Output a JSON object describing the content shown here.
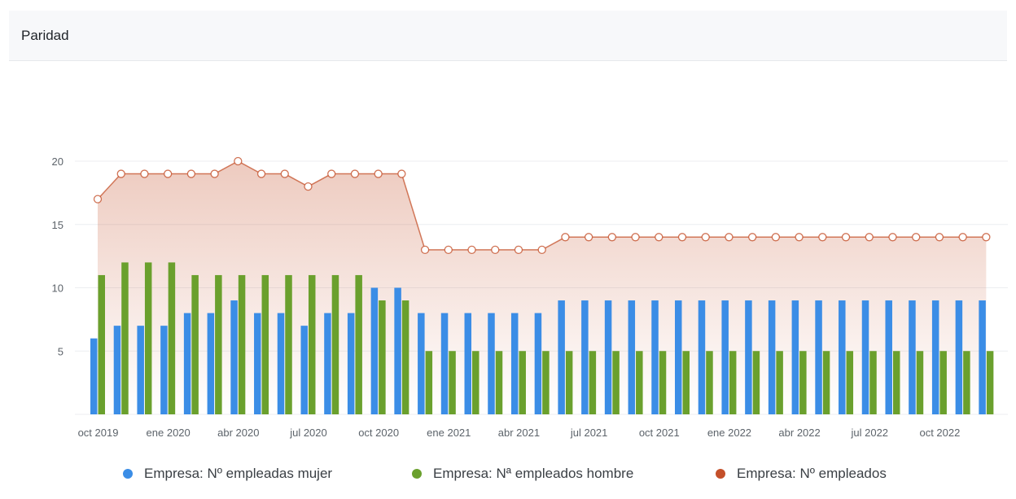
{
  "header": {
    "title": "Paridad"
  },
  "colors": {
    "mujer": "#3b8de6",
    "hombre": "#6aa02d",
    "total": "#c4502a",
    "grid": "#eceef1",
    "tick": "#5c636a"
  },
  "chart_data": {
    "type": "bar",
    "title": "",
    "xlabel": "",
    "ylabel": "",
    "ylim": [
      0,
      20
    ],
    "yticks": [
      5,
      10,
      15,
      20
    ],
    "grid": true,
    "legend_position": "bottom",
    "x": [
      "2019-10",
      "2019-11",
      "2019-12",
      "2020-01",
      "2020-02",
      "2020-03",
      "2020-04",
      "2020-05",
      "2020-06",
      "2020-07",
      "2020-08",
      "2020-09",
      "2020-10",
      "2020-11",
      "2020-12",
      "2021-01",
      "2021-02",
      "2021-03",
      "2021-04",
      "2021-05",
      "2021-06",
      "2021-07",
      "2021-08",
      "2021-09",
      "2021-10",
      "2021-11",
      "2021-12",
      "2022-01",
      "2022-02",
      "2022-03",
      "2022-04",
      "2022-05",
      "2022-06",
      "2022-07",
      "2022-08",
      "2022-09",
      "2022-10",
      "2022-11",
      "2022-12"
    ],
    "xtick_labels": [
      {
        "index": 0,
        "label": "oct 2019"
      },
      {
        "index": 3,
        "label": "ene 2020"
      },
      {
        "index": 6,
        "label": "abr 2020"
      },
      {
        "index": 9,
        "label": "jul 2020"
      },
      {
        "index": 12,
        "label": "oct 2020"
      },
      {
        "index": 15,
        "label": "ene 2021"
      },
      {
        "index": 18,
        "label": "abr 2021"
      },
      {
        "index": 21,
        "label": "jul 2021"
      },
      {
        "index": 24,
        "label": "oct 2021"
      },
      {
        "index": 27,
        "label": "ene 2022"
      },
      {
        "index": 30,
        "label": "abr 2022"
      },
      {
        "index": 33,
        "label": "jul 2022"
      },
      {
        "index": 36,
        "label": "oct 2022"
      }
    ],
    "series": [
      {
        "name": "Empresa: Nº empleadas mujer",
        "kind": "bar",
        "color": "#3b8de6",
        "values": [
          6,
          7,
          7,
          7,
          8,
          8,
          9,
          8,
          8,
          7,
          8,
          8,
          10,
          10,
          8,
          8,
          8,
          8,
          8,
          8,
          9,
          9,
          9,
          9,
          9,
          9,
          9,
          9,
          9,
          9,
          9,
          9,
          9,
          9,
          9,
          9,
          9,
          9,
          9
        ]
      },
      {
        "name": "Empresa: Nª empleados hombre",
        "kind": "bar",
        "color": "#6aa02d",
        "values": [
          11,
          12,
          12,
          12,
          11,
          11,
          11,
          11,
          11,
          11,
          11,
          11,
          9,
          9,
          5,
          5,
          5,
          5,
          5,
          5,
          5,
          5,
          5,
          5,
          5,
          5,
          5,
          5,
          5,
          5,
          5,
          5,
          5,
          5,
          5,
          5,
          5,
          5,
          5
        ]
      },
      {
        "name": "Empresa: Nº empleados",
        "kind": "area",
        "color": "#c4502a",
        "values": [
          17,
          19,
          19,
          19,
          19,
          19,
          20,
          19,
          19,
          18,
          19,
          19,
          19,
          19,
          13,
          13,
          13,
          13,
          13,
          13,
          14,
          14,
          14,
          14,
          14,
          14,
          14,
          14,
          14,
          14,
          14,
          14,
          14,
          14,
          14,
          14,
          14,
          14,
          14
        ]
      }
    ]
  }
}
